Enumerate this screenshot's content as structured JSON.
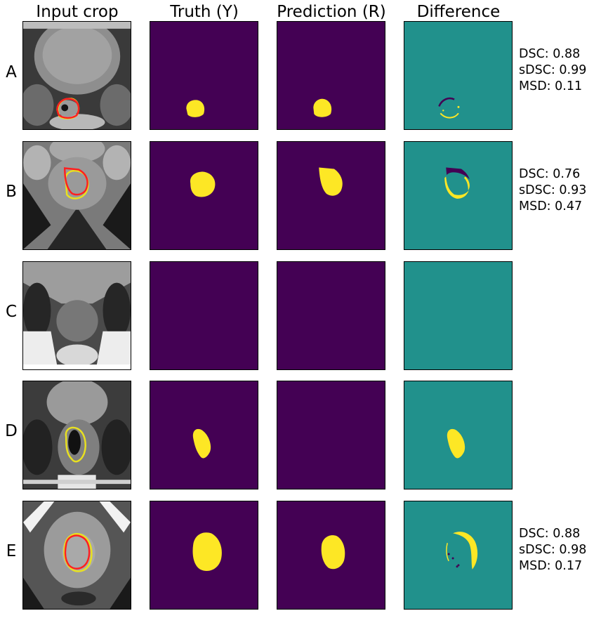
{
  "columns": [
    "Input crop",
    "Truth (Y)",
    "Prediction (R)",
    "Difference"
  ],
  "colors": {
    "background_mask": "#440154",
    "foreground_mask": "#fde725",
    "difference_zero": "#21918c",
    "difference_neg": "#440154",
    "truth_contour": "#e8e020",
    "prediction_contour": "#ff2020"
  },
  "rows": [
    {
      "label": "A",
      "metrics": {
        "dsc": "DSC: 0.88",
        "sdsc": "sDSC: 0.99",
        "msd": "MSD: 0.11"
      }
    },
    {
      "label": "B",
      "metrics": {
        "dsc": "DSC: 0.76",
        "sdsc": "sDSC: 0.93",
        "msd": "MSD: 0.47"
      }
    },
    {
      "label": "C",
      "metrics": null
    },
    {
      "label": "D",
      "metrics": null
    },
    {
      "label": "E",
      "metrics": {
        "dsc": "DSC: 0.88",
        "sdsc": "sDSC: 0.98",
        "msd": "MSD: 0.17"
      }
    }
  ]
}
